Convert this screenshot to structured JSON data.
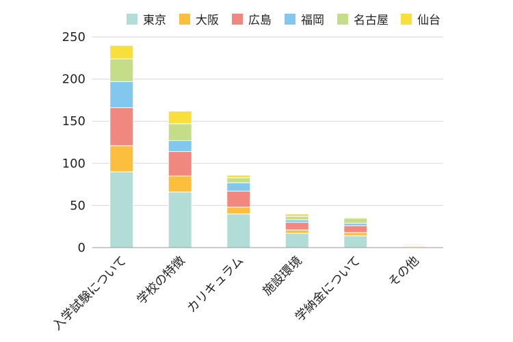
{
  "chart_data": {
    "type": "bar",
    "stacked": true,
    "categories": [
      "入学試験について",
      "学校の特徴",
      "カリキュラム",
      "施設環境",
      "学納金について",
      "その他"
    ],
    "series": [
      {
        "name": "東京",
        "color": "#b2dcd6",
        "values": [
          90,
          66,
          40,
          17,
          14,
          1
        ]
      },
      {
        "name": "大阪",
        "color": "#fbbf3d",
        "values": [
          31,
          19,
          8,
          4,
          4,
          1
        ]
      },
      {
        "name": "広島",
        "color": "#f08880",
        "values": [
          45,
          29,
          19,
          9,
          8,
          0
        ]
      },
      {
        "name": "福岡",
        "color": "#82c8ee",
        "values": [
          31,
          13,
          10,
          3,
          3,
          1
        ]
      },
      {
        "name": "名古屋",
        "color": "#c5dd88",
        "values": [
          27,
          20,
          6,
          4,
          6,
          0
        ]
      },
      {
        "name": "仙台",
        "color": "#f9df3c",
        "values": [
          16,
          15,
          3,
          3,
          1,
          1
        ]
      }
    ],
    "yticks": [
      "0",
      "50",
      "100",
      "150",
      "200",
      "250"
    ],
    "ylim": [
      0,
      250
    ],
    "grid": true,
    "legend_position": "top"
  }
}
